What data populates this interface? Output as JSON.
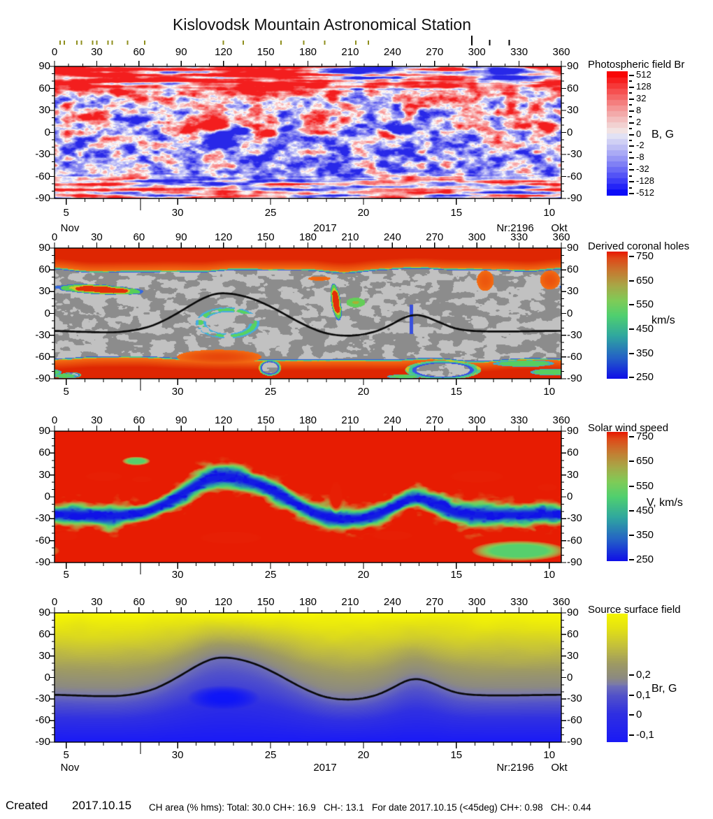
{
  "title": "Kislovodsk Mountain Astronomical Station",
  "axes": {
    "lon_labels": [
      "0",
      "30",
      "60",
      "90",
      "120",
      "150",
      "180",
      "210",
      "240",
      "270",
      "300",
      "330",
      "360"
    ],
    "lat_labels": [
      "90",
      "60",
      "30",
      "0",
      "-30",
      "-60",
      "-90"
    ],
    "date_labels": [
      "5",
      "30",
      "25",
      "20",
      "15",
      "10"
    ],
    "left_month": "Nov",
    "year": "2017",
    "rotation_label": "Nr:2196",
    "right_month": "Okt"
  },
  "top_marks": {
    "olive_degrees": [
      4,
      7,
      16,
      19,
      27,
      30,
      38,
      41,
      52,
      64,
      120,
      134,
      161,
      177,
      192,
      214,
      223
    ],
    "black_marks": [
      {
        "deg": 296.5,
        "len": 14
      },
      {
        "deg": 309,
        "len": 8
      },
      {
        "deg": 323,
        "len": 8
      }
    ]
  },
  "panels": [
    {
      "id": "photospheric-br",
      "title": "Photospheric field Br",
      "unit": "B, G",
      "colorbar_ticks": [
        "512",
        "128",
        "32",
        "8",
        "2",
        "0",
        "-2",
        "-8",
        "-32",
        "-128",
        "-512"
      ],
      "show_date_meta": true
    },
    {
      "id": "coronal-holes",
      "title": "Derived coronal holes",
      "unit": "km/s",
      "colorbar_ticks": [
        "750",
        "650",
        "550",
        "450",
        "350",
        "250"
      ],
      "show_date_meta": false
    },
    {
      "id": "wind-speed",
      "title": "Solar wind speed",
      "unit": "V, km/s",
      "colorbar_ticks": [
        "750",
        "650",
        "550",
        "450",
        "350",
        "250"
      ],
      "show_date_meta": false
    },
    {
      "id": "source-surface",
      "title": "Source surface field",
      "unit": "Br, G",
      "colorbar_ticks": [
        "0,2",
        "0,1",
        "0",
        "-0,1"
      ],
      "show_date_meta": true
    }
  ],
  "footer": {
    "created_label": "Created",
    "created_date": "2017.10.15",
    "stats": "CH area (% hms): Total: 30.0 CH+: 16.9   CH-: 13.1   For date 2017.10.15 (<45deg) CH+: 0.98   CH-: 0.44"
  },
  "neutral_line": [
    [
      0,
      -24
    ],
    [
      15,
      -25
    ],
    [
      30,
      -26
    ],
    [
      45,
      -26
    ],
    [
      58,
      -23
    ],
    [
      70,
      -17
    ],
    [
      80,
      -8
    ],
    [
      90,
      3
    ],
    [
      100,
      15
    ],
    [
      108,
      23
    ],
    [
      115,
      27.5
    ],
    [
      122,
      28
    ],
    [
      130,
      26
    ],
    [
      140,
      21
    ],
    [
      150,
      13
    ],
    [
      160,
      3
    ],
    [
      170,
      -8
    ],
    [
      180,
      -18
    ],
    [
      190,
      -26
    ],
    [
      200,
      -30
    ],
    [
      210,
      -31
    ],
    [
      220,
      -29
    ],
    [
      230,
      -24
    ],
    [
      240,
      -15
    ],
    [
      248,
      -6
    ],
    [
      255,
      -1.5
    ],
    [
      262,
      -3
    ],
    [
      270,
      -9
    ],
    [
      278,
      -16
    ],
    [
      285,
      -21
    ],
    [
      295,
      -24
    ],
    [
      310,
      -25
    ],
    [
      325,
      -25
    ],
    [
      340,
      -24.5
    ],
    [
      360,
      -24
    ]
  ],
  "chart_data": [
    {
      "type": "heatmap",
      "id": "photospheric-br",
      "title": "Photospheric field Br",
      "x_range": [
        0,
        360
      ],
      "y_range": [
        -90,
        90
      ],
      "scale_type": "diverging-log",
      "colorbar_values": [
        512,
        128,
        32,
        8,
        2,
        0,
        -2,
        -8,
        -32,
        -128,
        -512
      ],
      "unit": "B, G",
      "pos_color": "#f31e1e",
      "neg_color": "#2828e8",
      "active_regions": [
        [
          112,
          9,
          8,
          1.5
        ],
        [
          121,
          -3,
          7,
          -1.7
        ],
        [
          131,
          3,
          6,
          -1.4
        ],
        [
          124,
          -13,
          9,
          -1.0
        ],
        [
          152,
          -1,
          7,
          1.4
        ],
        [
          97,
          3,
          6,
          1.0
        ],
        [
          165,
          6,
          7,
          -0.9
        ],
        [
          249,
          3,
          9,
          -1.3
        ],
        [
          241,
          -5,
          7,
          1.0
        ],
        [
          347,
          9,
          10,
          1.2
        ],
        [
          28,
          22,
          9,
          0.8
        ],
        [
          58,
          16,
          10,
          -0.7
        ],
        [
          206,
          17,
          7,
          0.7
        ],
        [
          268,
          18,
          9,
          -0.7
        ],
        [
          220,
          84,
          22,
          -0.9
        ],
        [
          320,
          83,
          26,
          -0.8
        ],
        [
          30,
          70,
          30,
          0.5
        ],
        [
          150,
          75,
          35,
          0.5
        ]
      ]
    },
    {
      "type": "heatmap",
      "id": "coronal-holes",
      "title": "Derived coronal holes",
      "x_range": [
        0,
        360
      ],
      "y_range": [
        -90,
        90
      ],
      "colorbar_values": [
        750,
        650,
        550,
        450,
        350,
        250
      ],
      "unit": "km/s",
      "gray_levels": [
        "#c1c1c1",
        "#8c8c8c"
      ],
      "polar_boundary": {
        "north_lat": 62,
        "south_lat": -64
      },
      "red_blobs": [
        [
          117,
          -60,
          30,
          10
        ],
        [
          306,
          45,
          6,
          14
        ],
        [
          352,
          46,
          7,
          13
        ],
        [
          188,
          48,
          8,
          3
        ]
      ],
      "gray_carve": [
        [
          153,
          -75,
          8,
          11
        ],
        [
          276,
          -78,
          27,
          13
        ],
        [
          12,
          -85,
          7,
          4
        ]
      ],
      "features": [
        {
          "kind": "ch-streak",
          "center": [
            32,
            33
          ],
          "radii": [
            32,
            6.5
          ],
          "rot": -6
        },
        {
          "kind": "ring",
          "center": [
            123,
            -13
          ],
          "radius": 19,
          "thickness": 3.6
        },
        {
          "kind": "ch-streak",
          "center": [
            200,
            15
          ],
          "radii": [
            3.5,
            25
          ],
          "rot": 4
        },
        {
          "kind": "small-ring",
          "center": [
            214,
            15
          ],
          "radius": 4.5,
          "thickness": 2.2
        },
        {
          "kind": "blue-line",
          "center": [
            253.5,
            -8
          ],
          "radii": [
            1.1,
            20
          ]
        },
        {
          "kind": "green-streak",
          "center": [
            333,
            -69
          ],
          "radii": [
            22,
            4.5
          ]
        },
        {
          "kind": "green-streak",
          "center": [
            352,
            -81
          ],
          "radii": [
            13,
            4.5
          ]
        },
        {
          "kind": "green-streak",
          "center": [
            8,
            -86
          ],
          "radii": [
            8,
            3
          ]
        },
        {
          "kind": "green-streak",
          "center": [
            248,
            -87
          ],
          "radii": [
            12,
            3
          ]
        }
      ]
    },
    {
      "type": "heatmap",
      "id": "wind-speed",
      "title": "Solar wind speed",
      "x_range": [
        0,
        360
      ],
      "y_range": [
        -90,
        90
      ],
      "colorbar_values": [
        750,
        650,
        550,
        450,
        350,
        250
      ],
      "unit": "V, km/s",
      "palette": [
        [
          250,
          "#1010e8"
        ],
        [
          330,
          "#2460c8"
        ],
        [
          420,
          "#30a8a0"
        ],
        [
          500,
          "#50d070"
        ],
        [
          560,
          "#80cc58"
        ],
        [
          620,
          "#a8a848"
        ],
        [
          680,
          "#c87830"
        ],
        [
          730,
          "#e04818"
        ],
        [
          756,
          "#e81800"
        ]
      ],
      "red_blobs": [
        [
          35,
          28,
          18,
          9
        ],
        [
          62,
          24,
          10,
          6
        ],
        [
          200,
          2,
          6,
          26
        ],
        [
          300,
          28,
          26,
          12
        ],
        [
          350,
          13,
          10,
          7
        ],
        [
          125,
          -56,
          30,
          12
        ],
        [
          240,
          -53,
          20,
          9
        ],
        [
          8,
          -54,
          12,
          8
        ]
      ],
      "green_blobs": [
        [
          330,
          -74,
          34,
          14
        ],
        [
          58,
          49,
          10,
          6
        ]
      ]
    },
    {
      "type": "heatmap",
      "id": "source-surface",
      "title": "Source surface field",
      "x_range": [
        0,
        360
      ],
      "y_range": [
        -90,
        90
      ],
      "colorbar_values": [
        0.2,
        0.1,
        0,
        -0.1
      ],
      "unit": "Br, G",
      "top_ramp": [
        [
          0,
          "#7878af"
        ],
        [
          0.1,
          "#8c8a82"
        ],
        [
          0.3,
          "#9e9a64"
        ],
        [
          0.55,
          "#c4c03c"
        ],
        [
          0.8,
          "#e4e214"
        ],
        [
          1,
          "#f6f602"
        ]
      ],
      "bottom_ramp": [
        [
          0,
          "#7070b6"
        ],
        [
          0.18,
          "#5252ca"
        ],
        [
          0.5,
          "#3030e2"
        ],
        [
          1,
          "#1a1af6"
        ]
      ],
      "deep_blob": [
        120,
        -28,
        26,
        17
      ]
    }
  ]
}
